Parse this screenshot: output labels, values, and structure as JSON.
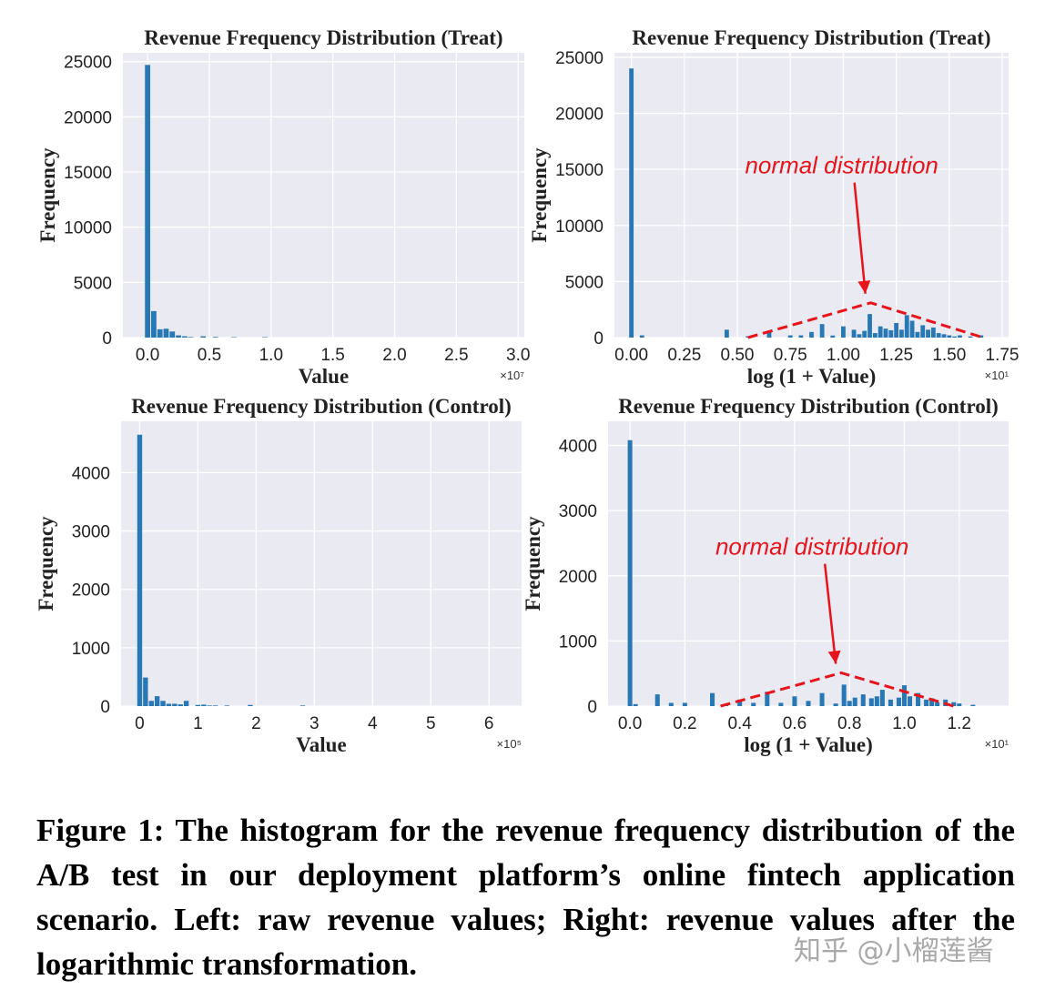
{
  "figure": {
    "caption": "Figure 1: The histogram for the revenue frequency distribution of the A/B test in our deployment platform’s online fintech application scenario. Left: raw revenue values; Right: revenue values after the logarithmic transformation.",
    "watermark": "知乎 @小榴莲酱"
  },
  "colors": {
    "bar": "#2878b5",
    "plot_background": "#eaeaf2",
    "grid": "#ffffff",
    "annotation": "#e8141b"
  },
  "chart_data": [
    {
      "type": "bar",
      "title": "Revenue Frequency Distribution (Treat)",
      "xlabel": "Value",
      "ylabel": "Frequency",
      "x_multiplier": "×10⁷",
      "xlim": [
        -0.2,
        3.05
      ],
      "ylim": [
        0,
        25800
      ],
      "xticks": [
        0.0,
        0.5,
        1.0,
        1.5,
        2.0,
        2.5,
        3.0
      ],
      "xtick_labels": [
        "0.0",
        "0.5",
        "1.0",
        "1.5",
        "2.0",
        "2.5",
        "3.0"
      ],
      "yticks": [
        0,
        5000,
        10000,
        15000,
        20000,
        25000
      ],
      "ytick_labels": [
        "0",
        "5000",
        "10000",
        "15000",
        "20000",
        "25000"
      ],
      "bin_width": 0.05,
      "x": [
        0.0,
        0.05,
        0.1,
        0.15,
        0.2,
        0.25,
        0.3,
        0.35,
        0.45,
        0.55,
        0.7,
        0.95
      ],
      "values": [
        24700,
        2400,
        750,
        800,
        550,
        200,
        120,
        50,
        120,
        60,
        40,
        40
      ],
      "grid": true
    },
    {
      "type": "bar",
      "title": "Revenue Frequency Distribution (Treat)",
      "xlabel": "log (1 + Value)",
      "ylabel": "Frequency",
      "x_multiplier": "×10¹",
      "xlim": [
        -0.08,
        1.78
      ],
      "ylim": [
        0,
        25400
      ],
      "xticks": [
        0.0,
        0.25,
        0.5,
        0.75,
        1.0,
        1.25,
        1.5,
        1.75
      ],
      "xtick_labels": [
        "0.00",
        "0.25",
        "0.50",
        "0.75",
        "1.00",
        "1.25",
        "1.50",
        "1.75"
      ],
      "yticks": [
        0,
        5000,
        10000,
        15000,
        20000,
        25000
      ],
      "ytick_labels": [
        "0",
        "5000",
        "10000",
        "15000",
        "20000",
        "25000"
      ],
      "bin_width": 0.025,
      "x": [
        0.0,
        0.05,
        0.45,
        0.55,
        0.65,
        0.75,
        0.8,
        0.85,
        0.9,
        0.95,
        1.0,
        1.05,
        1.075,
        1.1,
        1.125,
        1.15,
        1.175,
        1.2,
        1.225,
        1.25,
        1.275,
        1.3,
        1.325,
        1.35,
        1.375,
        1.4,
        1.425,
        1.45,
        1.475,
        1.5,
        1.525,
        1.55,
        1.6,
        1.65
      ],
      "values": [
        24000,
        200,
        700,
        120,
        600,
        200,
        200,
        500,
        1200,
        180,
        1000,
        700,
        300,
        600,
        2100,
        400,
        1000,
        800,
        650,
        1300,
        700,
        2000,
        1500,
        500,
        1100,
        700,
        900,
        400,
        300,
        200,
        100,
        200,
        100,
        200
      ],
      "annotation": "normal distribution",
      "fit_curve": {
        "x": [
          0.55,
          1.13,
          1.66
        ],
        "y": [
          0,
          3100,
          0
        ]
      },
      "grid": true
    },
    {
      "type": "bar",
      "title": "Revenue Frequency Distribution (Control)",
      "xlabel": "Value",
      "ylabel": "Frequency",
      "x_multiplier": "×10⁵",
      "xlim": [
        -0.32,
        6.56
      ],
      "ylim": [
        0,
        4880
      ],
      "xticks": [
        0,
        1,
        2,
        3,
        4,
        5,
        6
      ],
      "xtick_labels": [
        "0",
        "1",
        "2",
        "3",
        "4",
        "5",
        "6"
      ],
      "yticks": [
        0,
        1000,
        2000,
        3000,
        4000
      ],
      "ytick_labels": [
        "0",
        "1000",
        "2000",
        "3000",
        "4000"
      ],
      "bin_width": 0.1,
      "x": [
        0.0,
        0.1,
        0.2,
        0.3,
        0.4,
        0.5,
        0.6,
        0.7,
        0.8,
        1.0,
        1.1,
        1.2,
        1.3,
        1.5,
        1.9,
        2.8
      ],
      "values": [
        4650,
        490,
        90,
        170,
        90,
        40,
        40,
        30,
        90,
        20,
        25,
        10,
        10,
        10,
        20,
        10
      ],
      "grid": true
    },
    {
      "type": "bar",
      "title": "Revenue Frequency Distribution (Control)",
      "xlabel": "log (1 + Value)",
      "ylabel": "Frequency",
      "x_multiplier": "×10¹",
      "xlim": [
        -0.08,
        1.38
      ],
      "ylim": [
        0,
        4370
      ],
      "xticks": [
        0.0,
        0.2,
        0.4,
        0.6,
        0.8,
        1.0,
        1.2
      ],
      "xtick_labels": [
        "0.0",
        "0.2",
        "0.4",
        "0.6",
        "0.8",
        "1.0",
        "1.2"
      ],
      "yticks": [
        0,
        1000,
        2000,
        3000,
        4000
      ],
      "ytick_labels": [
        "0",
        "1000",
        "2000",
        "3000",
        "4000"
      ],
      "bin_width": 0.02,
      "x": [
        0.0,
        0.02,
        0.1,
        0.15,
        0.2,
        0.3,
        0.35,
        0.4,
        0.45,
        0.5,
        0.55,
        0.6,
        0.65,
        0.7,
        0.75,
        0.78,
        0.8,
        0.82,
        0.85,
        0.88,
        0.9,
        0.92,
        0.95,
        0.98,
        1.0,
        1.02,
        1.05,
        1.08,
        1.1,
        1.12,
        1.15,
        1.18,
        1.2,
        1.25
      ],
      "values": [
        4080,
        30,
        180,
        50,
        50,
        200,
        30,
        100,
        50,
        220,
        50,
        150,
        80,
        200,
        40,
        330,
        80,
        130,
        180,
        120,
        150,
        250,
        100,
        130,
        320,
        150,
        200,
        100,
        120,
        60,
        100,
        60,
        40,
        20
      ],
      "annotation": "normal distribution",
      "fit_curve": {
        "x": [
          0.33,
          0.77,
          1.18
        ],
        "y": [
          0,
          510,
          0
        ]
      },
      "grid": true
    }
  ]
}
